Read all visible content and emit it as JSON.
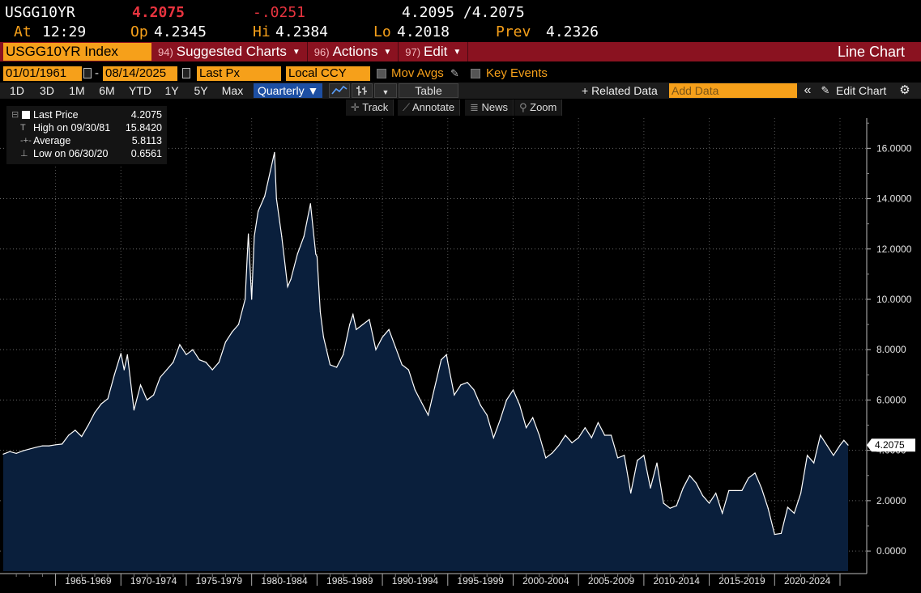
{
  "quote": {
    "ticker": "USGG10YR",
    "last": "4.2075",
    "change": "-.0251",
    "bid_ask": "4.2095 /4.2075",
    "at_label": "At",
    "at_time": "12:29",
    "op_label": "Op",
    "op_value": "4.2345",
    "hi_label": "Hi",
    "hi_value": "4.2384",
    "lo_label": "Lo",
    "lo_value": "4.2018",
    "prev_label": "Prev",
    "prev_value": "4.2326"
  },
  "command_bar": {
    "security": "USGG10YR Index",
    "menus": [
      {
        "num": "94)",
        "label": "Suggested Charts"
      },
      {
        "num": "96)",
        "label": "Actions"
      },
      {
        "num": "97)",
        "label": "Edit"
      }
    ],
    "chart_title": "Line Chart"
  },
  "controls": {
    "start_date": "01/01/1961",
    "dash": "-",
    "end_date": "08/14/2025",
    "field": "Last Px",
    "currency": "Local CCY",
    "mov_avgs": "Mov Avgs",
    "key_events": "Key Events"
  },
  "periods": {
    "items": [
      "1D",
      "3D",
      "1M",
      "6M",
      "YTD",
      "1Y",
      "5Y",
      "Max"
    ],
    "frequency": "Quarterly ▼",
    "table": "Table",
    "related": "+ Related Data",
    "add_data_placeholder": "Add Data",
    "collapse": "«",
    "edit_chart": "Edit Chart"
  },
  "tools": {
    "track": "Track",
    "annotate": "Annotate",
    "news": "News",
    "zoom": "Zoom"
  },
  "legend": {
    "last_price_label": "Last Price",
    "last_price_value": "4.2075",
    "high_label": "High on 09/30/81",
    "high_value": "15.8420",
    "average_label": "Average",
    "average_value": "5.8113",
    "low_label": "Low on 06/30/20",
    "low_value": "0.6561"
  },
  "colors": {
    "area_fill": "#0a1f3c",
    "line": "#ffffff",
    "accent_orange": "#f6a01a",
    "accent_red": "#e8343f",
    "command_bar": "#8a1220",
    "selected": "#1d4fa3"
  },
  "chart_data": {
    "type": "area",
    "x_start": 1961,
    "x_end": 2025.62,
    "xlabel": "",
    "ylabel": "",
    "ylim": [
      -0.8,
      17.2
    ],
    "y_ticks": [
      0,
      2,
      4,
      6,
      8,
      10,
      12,
      14,
      16
    ],
    "y_tick_labels": [
      "0.0000",
      "2.0000",
      "4.0000",
      "6.0000",
      "8.0000",
      "10.0000",
      "12.0000",
      "14.0000",
      "16.0000"
    ],
    "x_tick_labels": [
      "1965-1969",
      "1970-1974",
      "1975-1979",
      "1980-1984",
      "1985-1989",
      "1990-1994",
      "1995-1999",
      "2000-2004",
      "2005-2009",
      "2010-2014",
      "2015-2019",
      "2020-2024"
    ],
    "last_value_label": "4.2075",
    "grid": true,
    "axis_side": "right",
    "series": [
      {
        "values": [
          [
            1961.0,
            3.85
          ],
          [
            1961.5,
            3.95
          ],
          [
            1962.0,
            3.88
          ],
          [
            1962.5,
            3.98
          ],
          [
            1963.0,
            4.05
          ],
          [
            1963.5,
            4.12
          ],
          [
            1964.0,
            4.18
          ],
          [
            1964.5,
            4.18
          ],
          [
            1965.0,
            4.22
          ],
          [
            1965.5,
            4.25
          ],
          [
            1966.0,
            4.6
          ],
          [
            1966.5,
            4.8
          ],
          [
            1967.0,
            4.55
          ],
          [
            1967.5,
            5.0
          ],
          [
            1968.0,
            5.5
          ],
          [
            1968.5,
            5.85
          ],
          [
            1969.0,
            6.05
          ],
          [
            1969.5,
            7.0
          ],
          [
            1970.0,
            7.85
          ],
          [
            1970.25,
            7.2
          ],
          [
            1970.5,
            7.8
          ],
          [
            1971.0,
            5.6
          ],
          [
            1971.5,
            6.6
          ],
          [
            1972.0,
            6.0
          ],
          [
            1972.5,
            6.2
          ],
          [
            1973.0,
            6.9
          ],
          [
            1973.5,
            7.2
          ],
          [
            1974.0,
            7.5
          ],
          [
            1974.5,
            8.2
          ],
          [
            1975.0,
            7.8
          ],
          [
            1975.5,
            8.0
          ],
          [
            1976.0,
            7.6
          ],
          [
            1976.5,
            7.5
          ],
          [
            1977.0,
            7.2
          ],
          [
            1977.5,
            7.5
          ],
          [
            1978.0,
            8.3
          ],
          [
            1978.5,
            8.7
          ],
          [
            1979.0,
            9.0
          ],
          [
            1979.5,
            10.0
          ],
          [
            1979.75,
            12.6
          ],
          [
            1980.0,
            10.0
          ],
          [
            1980.2,
            12.5
          ],
          [
            1980.5,
            13.5
          ],
          [
            1981.0,
            14.1
          ],
          [
            1981.75,
            15.84
          ],
          [
            1981.9,
            14.0
          ],
          [
            1982.3,
            12.5
          ],
          [
            1982.75,
            10.5
          ],
          [
            1983.0,
            10.8
          ],
          [
            1983.5,
            11.8
          ],
          [
            1984.0,
            12.5
          ],
          [
            1984.5,
            13.8
          ],
          [
            1984.9,
            11.8
          ],
          [
            1985.0,
            11.7
          ],
          [
            1985.25,
            9.5
          ],
          [
            1985.5,
            8.5
          ],
          [
            1986.0,
            7.4
          ],
          [
            1986.5,
            7.3
          ],
          [
            1987.0,
            7.8
          ],
          [
            1987.5,
            9.0
          ],
          [
            1987.75,
            9.4
          ],
          [
            1988.0,
            8.8
          ],
          [
            1988.5,
            9.0
          ],
          [
            1989.0,
            9.2
          ],
          [
            1989.5,
            8.0
          ],
          [
            1990.0,
            8.5
          ],
          [
            1990.5,
            8.8
          ],
          [
            1991.0,
            8.1
          ],
          [
            1991.5,
            7.4
          ],
          [
            1992.0,
            7.2
          ],
          [
            1992.5,
            6.4
          ],
          [
            1993.0,
            5.9
          ],
          [
            1993.5,
            5.4
          ],
          [
            1994.0,
            6.5
          ],
          [
            1994.5,
            7.6
          ],
          [
            1994.9,
            7.8
          ],
          [
            1995.0,
            7.5
          ],
          [
            1995.5,
            6.2
          ],
          [
            1996.0,
            6.6
          ],
          [
            1996.5,
            6.7
          ],
          [
            1997.0,
            6.4
          ],
          [
            1997.5,
            5.8
          ],
          [
            1998.0,
            5.4
          ],
          [
            1998.5,
            4.5
          ],
          [
            1999.0,
            5.2
          ],
          [
            1999.5,
            6.0
          ],
          [
            2000.0,
            6.4
          ],
          [
            2000.5,
            5.8
          ],
          [
            2001.0,
            4.9
          ],
          [
            2001.5,
            5.3
          ],
          [
            2002.0,
            4.6
          ],
          [
            2002.5,
            3.7
          ],
          [
            2003.0,
            3.9
          ],
          [
            2003.5,
            4.2
          ],
          [
            2004.0,
            4.6
          ],
          [
            2004.5,
            4.3
          ],
          [
            2005.0,
            4.5
          ],
          [
            2005.5,
            4.9
          ],
          [
            2006.0,
            4.5
          ],
          [
            2006.5,
            5.1
          ],
          [
            2007.0,
            4.6
          ],
          [
            2007.5,
            4.6
          ],
          [
            2008.0,
            3.7
          ],
          [
            2008.5,
            3.8
          ],
          [
            2009.0,
            2.3
          ],
          [
            2009.5,
            3.6
          ],
          [
            2010.0,
            3.8
          ],
          [
            2010.5,
            2.5
          ],
          [
            2011.0,
            3.5
          ],
          [
            2011.5,
            1.9
          ],
          [
            2012.0,
            1.7
          ],
          [
            2012.5,
            1.8
          ],
          [
            2013.0,
            2.5
          ],
          [
            2013.5,
            3.0
          ],
          [
            2014.0,
            2.7
          ],
          [
            2014.5,
            2.2
          ],
          [
            2015.0,
            1.9
          ],
          [
            2015.5,
            2.3
          ],
          [
            2016.0,
            1.5
          ],
          [
            2016.5,
            2.4
          ],
          [
            2017.0,
            2.4
          ],
          [
            2017.5,
            2.4
          ],
          [
            2018.0,
            2.9
          ],
          [
            2018.5,
            3.1
          ],
          [
            2019.0,
            2.5
          ],
          [
            2019.5,
            1.7
          ],
          [
            2020.0,
            0.66
          ],
          [
            2020.5,
            0.7
          ],
          [
            2021.0,
            1.74
          ],
          [
            2021.5,
            1.5
          ],
          [
            2022.0,
            2.3
          ],
          [
            2022.5,
            3.8
          ],
          [
            2023.0,
            3.5
          ],
          [
            2023.5,
            4.6
          ],
          [
            2024.0,
            4.2
          ],
          [
            2024.5,
            3.8
          ],
          [
            2025.0,
            4.2
          ],
          [
            2025.3,
            4.4
          ],
          [
            2025.62,
            4.2075
          ]
        ]
      }
    ]
  }
}
